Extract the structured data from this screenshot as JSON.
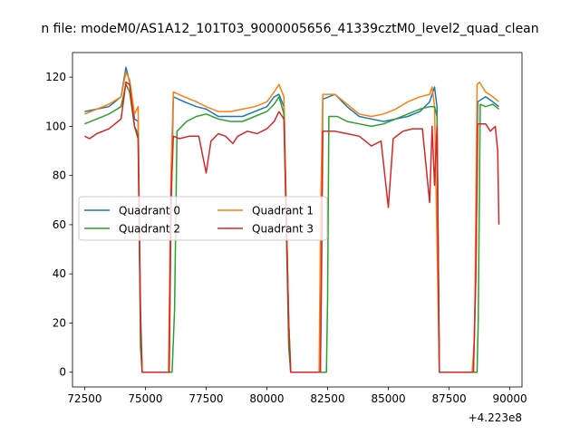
{
  "chart_data": {
    "type": "line",
    "title": "n file: modeM0/AS1A12_101T03_9000005656_41339cztM0_level2_quad_clean",
    "xlabel": "",
    "ylabel": "",
    "x_offset_label": "+4.223e8",
    "xlim": [
      72000,
      90500
    ],
    "ylim": [
      -6,
      130
    ],
    "xticks": [
      72500,
      75000,
      77500,
      80000,
      82500,
      85000,
      87500,
      90000
    ],
    "xtick_labels": [
      "72500",
      "75000",
      "77500",
      "80000",
      "82500",
      "85000",
      "87500",
      "90000"
    ],
    "yticks": [
      0,
      20,
      40,
      60,
      80,
      100,
      120
    ],
    "ytick_labels": [
      "0",
      "20",
      "40",
      "60",
      "80",
      "100",
      "120"
    ],
    "grid": false,
    "legend": {
      "placement": "center-left",
      "columns": 2
    },
    "series": [
      {
        "name": "Quadrant 0",
        "color": "#1f77b4",
        "points": [
          [
            72500,
            106
          ],
          [
            73000,
            107
          ],
          [
            73500,
            108
          ],
          [
            74000,
            112
          ],
          [
            74200,
            124
          ],
          [
            74350,
            118
          ],
          [
            74550,
            103
          ],
          [
            74700,
            102
          ],
          [
            74800,
            25
          ],
          [
            74870,
            0
          ],
          [
            75980,
            0
          ],
          [
            76050,
            60
          ],
          [
            76150,
            112
          ],
          [
            76600,
            110
          ],
          [
            77100,
            108
          ],
          [
            77500,
            107
          ],
          [
            78000,
            104
          ],
          [
            78500,
            104
          ],
          [
            79000,
            104
          ],
          [
            79500,
            106
          ],
          [
            80000,
            108
          ],
          [
            80300,
            112
          ],
          [
            80500,
            113
          ],
          [
            80700,
            108
          ],
          [
            80900,
            20
          ],
          [
            80980,
            0
          ],
          [
            82200,
            0
          ],
          [
            82250,
            45
          ],
          [
            82300,
            111
          ],
          [
            82800,
            113
          ],
          [
            83300,
            108
          ],
          [
            83800,
            104
          ],
          [
            84300,
            103
          ],
          [
            84800,
            102
          ],
          [
            85300,
            103
          ],
          [
            85800,
            104
          ],
          [
            86300,
            106
          ],
          [
            86700,
            110
          ],
          [
            86900,
            116
          ],
          [
            87000,
            108
          ],
          [
            87100,
            0
          ],
          [
            88500,
            0
          ],
          [
            88600,
            40
          ],
          [
            88680,
            110
          ],
          [
            89000,
            112
          ],
          [
            89300,
            110
          ],
          [
            89550,
            108
          ]
        ]
      },
      {
        "name": "Quadrant 1",
        "color": "#ff7f0e",
        "points": [
          [
            72500,
            105
          ],
          [
            73000,
            107
          ],
          [
            73500,
            109
          ],
          [
            74000,
            112
          ],
          [
            74200,
            122
          ],
          [
            74350,
            119
          ],
          [
            74550,
            105
          ],
          [
            74700,
            108
          ],
          [
            74800,
            10
          ],
          [
            74870,
            0
          ],
          [
            75950,
            0
          ],
          [
            76050,
            80
          ],
          [
            76150,
            114
          ],
          [
            76600,
            112
          ],
          [
            77100,
            110
          ],
          [
            77500,
            108
          ],
          [
            78000,
            106
          ],
          [
            78500,
            106
          ],
          [
            79000,
            107
          ],
          [
            79500,
            108
          ],
          [
            80000,
            110
          ],
          [
            80300,
            114
          ],
          [
            80500,
            117
          ],
          [
            80700,
            112
          ],
          [
            80900,
            20
          ],
          [
            80980,
            0
          ],
          [
            82150,
            0
          ],
          [
            82220,
            70
          ],
          [
            82300,
            113
          ],
          [
            82800,
            113
          ],
          [
            83300,
            109
          ],
          [
            83800,
            105
          ],
          [
            84300,
            104
          ],
          [
            84800,
            105
          ],
          [
            85300,
            107
          ],
          [
            85800,
            110
          ],
          [
            86300,
            112
          ],
          [
            86700,
            113
          ],
          [
            86800,
            116
          ],
          [
            86900,
            108
          ],
          [
            87100,
            0
          ],
          [
            88450,
            0
          ],
          [
            88550,
            15
          ],
          [
            88650,
            117
          ],
          [
            88750,
            118
          ],
          [
            89000,
            114
          ],
          [
            89300,
            112
          ],
          [
            89550,
            110
          ]
        ]
      },
      {
        "name": "Quadrant 2",
        "color": "#2ca02c",
        "points": [
          [
            72500,
            101
          ],
          [
            73000,
            103
          ],
          [
            73500,
            105
          ],
          [
            74000,
            108
          ],
          [
            74200,
            117
          ],
          [
            74350,
            114
          ],
          [
            74550,
            100
          ],
          [
            74700,
            97
          ],
          [
            74800,
            10
          ],
          [
            74870,
            0
          ],
          [
            76100,
            0
          ],
          [
            76200,
            25
          ],
          [
            76300,
            98
          ],
          [
            76700,
            102
          ],
          [
            77100,
            104
          ],
          [
            77500,
            105
          ],
          [
            78000,
            103
          ],
          [
            78500,
            102
          ],
          [
            79000,
            102
          ],
          [
            79500,
            104
          ],
          [
            80000,
            106
          ],
          [
            80300,
            109
          ],
          [
            80500,
            112
          ],
          [
            80700,
            105
          ],
          [
            80900,
            10
          ],
          [
            80980,
            0
          ],
          [
            82450,
            0
          ],
          [
            82500,
            30
          ],
          [
            82550,
            104
          ],
          [
            82900,
            104
          ],
          [
            83300,
            102
          ],
          [
            83800,
            101
          ],
          [
            84300,
            100
          ],
          [
            84800,
            101
          ],
          [
            85300,
            103
          ],
          [
            85800,
            105
          ],
          [
            86300,
            107
          ],
          [
            86700,
            108
          ],
          [
            86900,
            108
          ],
          [
            87000,
            104
          ],
          [
            87100,
            0
          ],
          [
            88650,
            0
          ],
          [
            88700,
            20
          ],
          [
            88780,
            109
          ],
          [
            89000,
            108
          ],
          [
            89300,
            109
          ],
          [
            89550,
            107
          ]
        ]
      },
      {
        "name": "Quadrant 3",
        "color": "#d62728",
        "points": [
          [
            72500,
            96
          ],
          [
            72700,
            95
          ],
          [
            73000,
            97
          ],
          [
            73500,
            99
          ],
          [
            74000,
            103
          ],
          [
            74200,
            118
          ],
          [
            74350,
            117
          ],
          [
            74550,
            100
          ],
          [
            74700,
            95
          ],
          [
            74800,
            20
          ],
          [
            74870,
            0
          ],
          [
            75980,
            0
          ],
          [
            76050,
            70
          ],
          [
            76150,
            96
          ],
          [
            76400,
            95
          ],
          [
            76800,
            96
          ],
          [
            77200,
            96
          ],
          [
            77500,
            81
          ],
          [
            77700,
            94
          ],
          [
            78000,
            97
          ],
          [
            78300,
            96
          ],
          [
            78600,
            93
          ],
          [
            78800,
            96
          ],
          [
            79200,
            98
          ],
          [
            79600,
            97
          ],
          [
            80000,
            99
          ],
          [
            80300,
            102
          ],
          [
            80500,
            106
          ],
          [
            80700,
            103
          ],
          [
            80900,
            20
          ],
          [
            80980,
            0
          ],
          [
            82200,
            0
          ],
          [
            82250,
            40
          ],
          [
            82300,
            98
          ],
          [
            82800,
            98
          ],
          [
            83300,
            97
          ],
          [
            83800,
            96
          ],
          [
            84300,
            92
          ],
          [
            84700,
            94
          ],
          [
            85000,
            67
          ],
          [
            85200,
            95
          ],
          [
            85600,
            98
          ],
          [
            86000,
            99
          ],
          [
            86400,
            99
          ],
          [
            86700,
            69
          ],
          [
            86800,
            100
          ],
          [
            86900,
            76
          ],
          [
            87000,
            100
          ],
          [
            87100,
            0
          ],
          [
            88500,
            0
          ],
          [
            88600,
            40
          ],
          [
            88680,
            101
          ],
          [
            89000,
            101
          ],
          [
            89200,
            98
          ],
          [
            89400,
            100
          ],
          [
            89500,
            90
          ],
          [
            89550,
            60
          ]
        ]
      }
    ]
  }
}
